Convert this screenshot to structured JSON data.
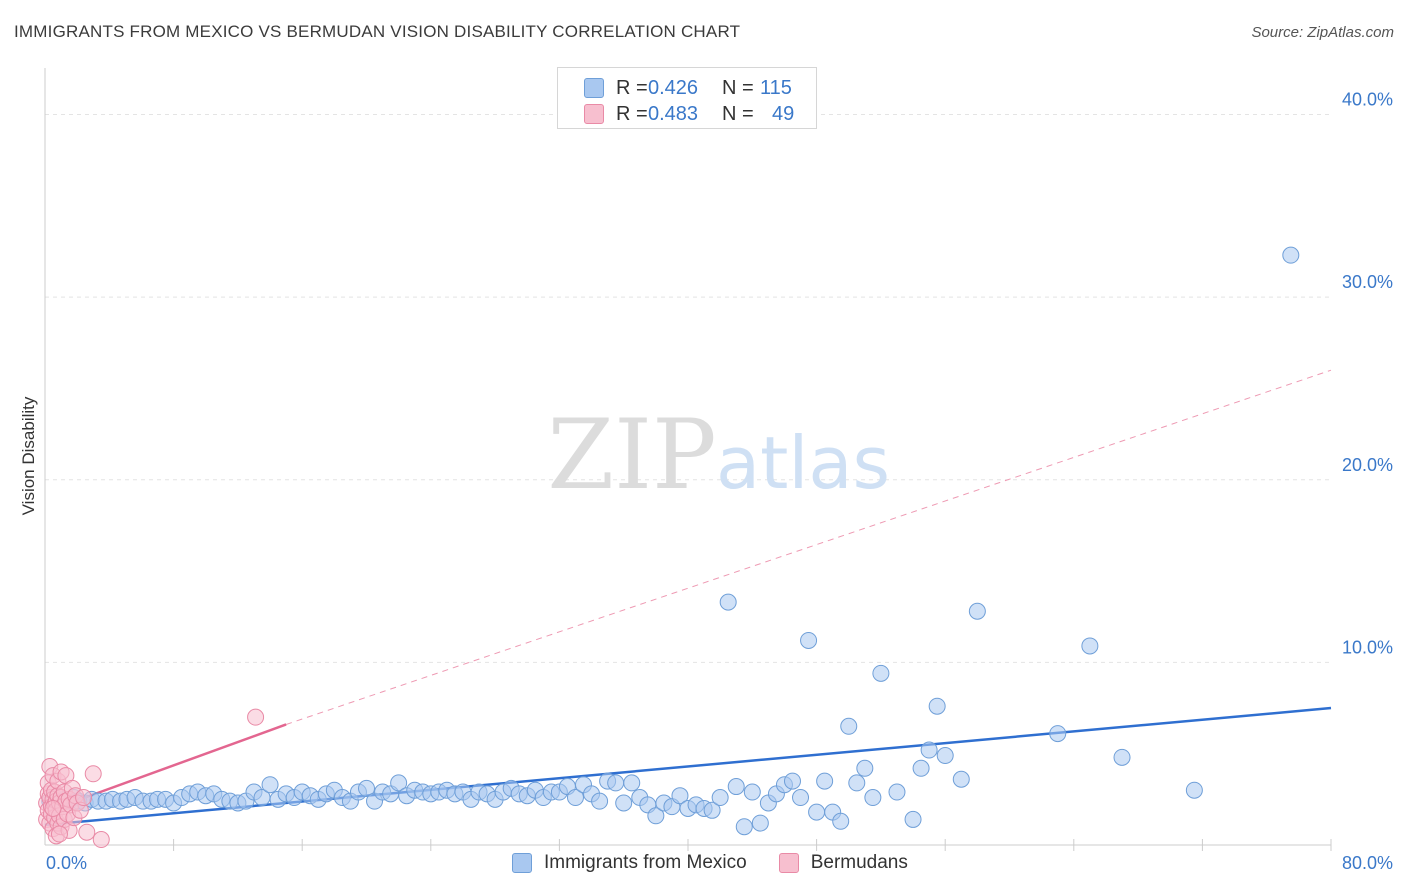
{
  "title": "IMMIGRANTS FROM MEXICO VS BERMUDAN VISION DISABILITY CORRELATION CHART",
  "source": "Source: ZipAtlas.com",
  "watermark": {
    "zip": "ZIP",
    "atlas": "atlas"
  },
  "legend": {
    "rows": [
      {
        "r_label": "R =",
        "r_value": "0.426",
        "n_label": "N =",
        "n_value": "115",
        "color": "#a9c8f0",
        "border": "#6f9fd8"
      },
      {
        "r_label": "R =",
        "r_value": "0.483",
        "n_label": "N =",
        "n_value": "49",
        "color": "#f7bfcf",
        "border": "#e98aa6"
      }
    ]
  },
  "chart_data": {
    "type": "scatter",
    "title": "IMMIGRANTS FROM MEXICO VS BERMUDAN VISION DISABILITY CORRELATION CHART",
    "xlabel": "",
    "ylabel": "Vision Disability",
    "xlim": [
      0,
      80
    ],
    "ylim": [
      0,
      42
    ],
    "x_tick_labels": [
      "0.0%",
      "80.0%"
    ],
    "y_ticks": [
      10,
      20,
      30,
      40
    ],
    "y_tick_labels": [
      "10.0%",
      "20.0%",
      "30.0%",
      "40.0%"
    ],
    "grid": true,
    "series": [
      {
        "name": "Immigrants from Mexico",
        "color": "#a9c8f0",
        "edge": "#6f9fd8",
        "trend": {
          "x0": 0,
          "y0": 1.1,
          "x1": 80,
          "y1": 7.5,
          "color": "#2f6fd0",
          "dashed": false
        },
        "points": [
          [
            0.3,
            2.4
          ],
          [
            0.6,
            2.6
          ],
          [
            0.9,
            2.3
          ],
          [
            1.2,
            2.5
          ],
          [
            1.5,
            2.4
          ],
          [
            1.8,
            2.6
          ],
          [
            2.1,
            2.4
          ],
          [
            2.5,
            2.3
          ],
          [
            2.9,
            2.5
          ],
          [
            3.3,
            2.4
          ],
          [
            3.8,
            2.4
          ],
          [
            4.2,
            2.5
          ],
          [
            4.7,
            2.4
          ],
          [
            5.1,
            2.5
          ],
          [
            5.6,
            2.6
          ],
          [
            6.1,
            2.4
          ],
          [
            6.6,
            2.4
          ],
          [
            7.0,
            2.5
          ],
          [
            7.5,
            2.5
          ],
          [
            8.0,
            2.3
          ],
          [
            8.5,
            2.6
          ],
          [
            9.0,
            2.8
          ],
          [
            9.5,
            2.9
          ],
          [
            10.0,
            2.7
          ],
          [
            10.5,
            2.8
          ],
          [
            11.0,
            2.5
          ],
          [
            11.5,
            2.4
          ],
          [
            12.0,
            2.3
          ],
          [
            12.5,
            2.4
          ],
          [
            13.0,
            2.9
          ],
          [
            13.5,
            2.6
          ],
          [
            14.0,
            3.3
          ],
          [
            14.5,
            2.5
          ],
          [
            15.0,
            2.8
          ],
          [
            15.5,
            2.6
          ],
          [
            16.0,
            2.9
          ],
          [
            16.5,
            2.7
          ],
          [
            17.0,
            2.5
          ],
          [
            17.5,
            2.8
          ],
          [
            18.0,
            3.0
          ],
          [
            18.5,
            2.6
          ],
          [
            19.0,
            2.4
          ],
          [
            19.5,
            2.9
          ],
          [
            20.0,
            3.1
          ],
          [
            20.5,
            2.4
          ],
          [
            21.0,
            2.9
          ],
          [
            21.5,
            2.8
          ],
          [
            22.0,
            3.4
          ],
          [
            22.5,
            2.7
          ],
          [
            23.0,
            3.0
          ],
          [
            23.5,
            2.9
          ],
          [
            24.0,
            2.8
          ],
          [
            24.5,
            2.9
          ],
          [
            25.0,
            3.0
          ],
          [
            25.5,
            2.8
          ],
          [
            26.0,
            2.9
          ],
          [
            26.5,
            2.5
          ],
          [
            27.0,
            2.9
          ],
          [
            27.5,
            2.8
          ],
          [
            28.0,
            2.5
          ],
          [
            28.5,
            2.9
          ],
          [
            29.0,
            3.1
          ],
          [
            29.5,
            2.8
          ],
          [
            30.0,
            2.7
          ],
          [
            30.5,
            3.0
          ],
          [
            31.0,
            2.6
          ],
          [
            31.5,
            2.9
          ],
          [
            32.0,
            2.9
          ],
          [
            32.5,
            3.2
          ],
          [
            33.0,
            2.6
          ],
          [
            33.5,
            3.3
          ],
          [
            34.0,
            2.8
          ],
          [
            34.5,
            2.4
          ],
          [
            35.0,
            3.5
          ],
          [
            35.5,
            3.4
          ],
          [
            36.0,
            2.3
          ],
          [
            36.5,
            3.4
          ],
          [
            37.0,
            2.6
          ],
          [
            37.5,
            2.2
          ],
          [
            38.0,
            1.6
          ],
          [
            38.5,
            2.3
          ],
          [
            39.0,
            2.1
          ],
          [
            39.5,
            2.7
          ],
          [
            40.0,
            2.0
          ],
          [
            40.5,
            2.2
          ],
          [
            41.0,
            2.0
          ],
          [
            41.5,
            1.9
          ],
          [
            42.0,
            2.6
          ],
          [
            42.5,
            13.3
          ],
          [
            43.0,
            3.2
          ],
          [
            43.5,
            1.0
          ],
          [
            44.0,
            2.9
          ],
          [
            44.5,
            1.2
          ],
          [
            45.0,
            2.3
          ],
          [
            45.5,
            2.8
          ],
          [
            46.0,
            3.3
          ],
          [
            46.5,
            3.5
          ],
          [
            47.0,
            2.6
          ],
          [
            47.5,
            11.2
          ],
          [
            48.0,
            1.8
          ],
          [
            48.5,
            3.5
          ],
          [
            49.0,
            1.8
          ],
          [
            49.5,
            1.3
          ],
          [
            50.0,
            6.5
          ],
          [
            50.5,
            3.4
          ],
          [
            51.0,
            4.2
          ],
          [
            51.5,
            2.6
          ],
          [
            52.0,
            9.4
          ],
          [
            53.0,
            2.9
          ],
          [
            54.0,
            1.4
          ],
          [
            54.5,
            4.2
          ],
          [
            55.0,
            5.2
          ],
          [
            55.5,
            7.6
          ],
          [
            56.0,
            4.9
          ],
          [
            57.0,
            3.6
          ],
          [
            58.0,
            12.8
          ],
          [
            63.0,
            6.1
          ],
          [
            65.0,
            10.9
          ],
          [
            67.0,
            4.8
          ],
          [
            71.5,
            3.0
          ],
          [
            77.5,
            32.3
          ]
        ]
      },
      {
        "name": "Bermudans",
        "color": "#f7bfcf",
        "edge": "#e98aa6",
        "trend": {
          "x0": 0,
          "y0": 1.8,
          "x1": 15,
          "y1": 6.6,
          "color": "#e36690",
          "dashed": false
        },
        "trend_extension": {
          "x0": 15,
          "y0": 6.6,
          "x1": 80,
          "y1": 26.0,
          "color": "#ee9ab3",
          "dashed": true
        },
        "points": [
          [
            0.1,
            2.3
          ],
          [
            0.1,
            1.4
          ],
          [
            0.2,
            2.8
          ],
          [
            0.2,
            1.9
          ],
          [
            0.2,
            3.4
          ],
          [
            0.3,
            2.6
          ],
          [
            0.3,
            1.2
          ],
          [
            0.3,
            4.3
          ],
          [
            0.4,
            2.1
          ],
          [
            0.4,
            3.0
          ],
          [
            0.4,
            1.7
          ],
          [
            0.5,
            2.5
          ],
          [
            0.5,
            0.9
          ],
          [
            0.5,
            3.8
          ],
          [
            0.6,
            2.2
          ],
          [
            0.6,
            1.5
          ],
          [
            0.6,
            2.9
          ],
          [
            0.7,
            2.4
          ],
          [
            0.7,
            0.5
          ],
          [
            0.7,
            1.9
          ],
          [
            0.8,
            2.7
          ],
          [
            0.8,
            1.2
          ],
          [
            0.8,
            3.5
          ],
          [
            0.9,
            2.3
          ],
          [
            0.9,
            1.6
          ],
          [
            1.0,
            2.6
          ],
          [
            1.0,
            4.0
          ],
          [
            1.0,
            1.0
          ],
          [
            1.1,
            2.1
          ],
          [
            1.2,
            1.4
          ],
          [
            1.2,
            2.9
          ],
          [
            1.3,
            2.4
          ],
          [
            1.3,
            3.8
          ],
          [
            1.4,
            1.7
          ],
          [
            1.5,
            2.5
          ],
          [
            1.5,
            0.8
          ],
          [
            1.6,
            2.2
          ],
          [
            1.7,
            3.1
          ],
          [
            1.8,
            1.5
          ],
          [
            1.9,
            2.7
          ],
          [
            2.0,
            2.3
          ],
          [
            2.2,
            1.9
          ],
          [
            2.4,
            2.6
          ],
          [
            2.6,
            0.7
          ],
          [
            3.0,
            3.9
          ],
          [
            3.5,
            0.3
          ],
          [
            13.1,
            7.0
          ],
          [
            0.9,
            0.6
          ],
          [
            0.5,
            2.0
          ]
        ]
      }
    ]
  }
}
